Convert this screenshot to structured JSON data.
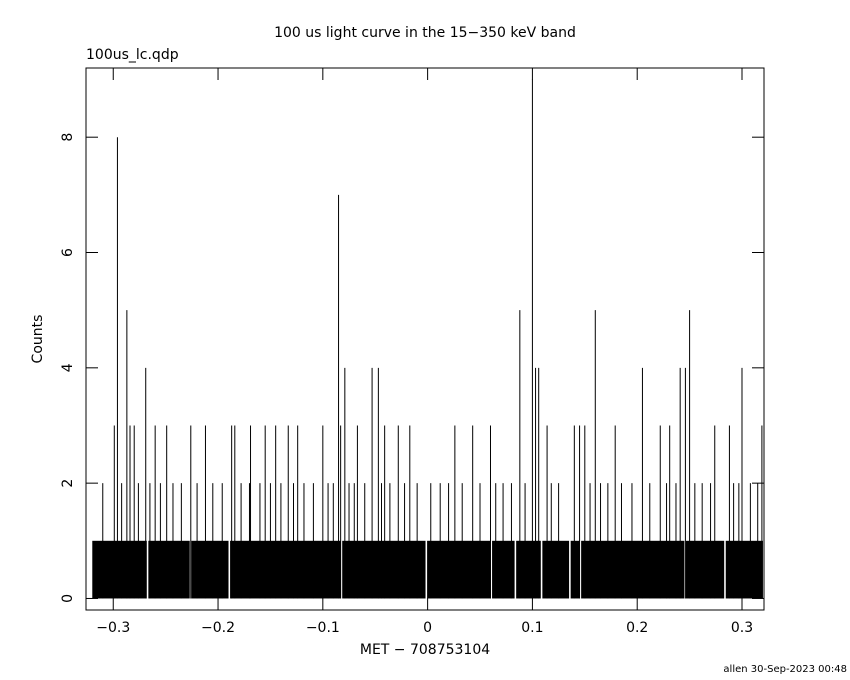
{
  "chart_data": {
    "type": "lightcurve",
    "title": "100 us light curve in the 15−350 keV band",
    "subtitle": "100us_lc.qdp",
    "xlabel": "MET − 708753104",
    "ylabel": "Counts",
    "footer": "allen 30-Sep-2023 00:48",
    "color": "#000000",
    "xlim": [
      -0.326,
      0.321
    ],
    "ylim": [
      -0.2,
      9.2
    ],
    "xticks": [
      {
        "value": -0.3,
        "label": "−0.3"
      },
      {
        "value": -0.2,
        "label": "−0.2"
      },
      {
        "value": -0.1,
        "label": "−0.1"
      },
      0,
      0.1,
      0.2,
      0.3
    ],
    "yticks": [
      0,
      2,
      4,
      6,
      8
    ],
    "histogram": {
      "bins": [
        -0.32,
        -0.268,
        -0.2665,
        -0.227,
        -0.2255,
        -0.19,
        -0.1885,
        -0.083,
        -0.0815,
        -0.002,
        -0.0005,
        0.06,
        0.0615,
        0.083,
        0.0845,
        0.108,
        0.1095,
        0.135,
        0.1365,
        0.145,
        0.1465,
        0.245,
        0.2465,
        0.283,
        0.2845,
        0.32
      ],
      "counts": [
        1,
        0,
        1,
        0,
        1,
        0,
        1,
        0,
        1,
        0,
        1,
        0,
        1,
        0,
        1,
        0,
        1,
        0,
        1,
        0,
        1,
        0,
        1,
        0,
        1
      ]
    },
    "spikes": {
      "x": [
        -0.296,
        -0.287,
        -0.269,
        -0.085,
        -0.079,
        -0.053,
        -0.047,
        0.1,
        0.088,
        0.103,
        0.106,
        0.16,
        0.205,
        0.241,
        0.25,
        0.246,
        0.3,
        -0.299,
        -0.284,
        -0.28,
        -0.26,
        -0.249,
        -0.226,
        -0.212,
        -0.187,
        -0.184,
        -0.169,
        -0.155,
        -0.145,
        -0.133,
        -0.124,
        -0.1,
        -0.083,
        -0.067,
        -0.041,
        -0.028,
        -0.017,
        0.026,
        0.043,
        0.06,
        0.114,
        0.14,
        0.145,
        0.15,
        0.179,
        0.222,
        0.231,
        0.274,
        0.288,
        0.319,
        -0.31,
        -0.292,
        -0.276,
        -0.265,
        -0.255,
        -0.243,
        -0.235,
        -0.22,
        -0.205,
        -0.196,
        -0.178,
        -0.17,
        -0.16,
        -0.15,
        -0.14,
        -0.128,
        -0.118,
        -0.109,
        -0.095,
        -0.09,
        -0.075,
        -0.07,
        -0.06,
        -0.044,
        -0.036,
        -0.022,
        -0.01,
        0.003,
        0.012,
        0.02,
        0.033,
        0.05,
        0.065,
        0.072,
        0.08,
        0.093,
        0.118,
        0.125,
        0.155,
        0.165,
        0.172,
        0.185,
        0.195,
        0.212,
        0.228,
        0.237,
        0.255,
        0.262,
        0.27,
        0.292,
        0.297,
        0.308,
        0.315
      ],
      "values": [
        8,
        5,
        4,
        7,
        4,
        4,
        4,
        9,
        5,
        4,
        4,
        5,
        4,
        4,
        5,
        4,
        4,
        3,
        3,
        3,
        3,
        3,
        3,
        3,
        3,
        3,
        3,
        3,
        3,
        3,
        3,
        3,
        3,
        3,
        3,
        3,
        3,
        3,
        3,
        3,
        3,
        3,
        3,
        3,
        3,
        3,
        3,
        3,
        3,
        3,
        2,
        2,
        2,
        2,
        2,
        2,
        2,
        2,
        2,
        2,
        2,
        2,
        2,
        2,
        2,
        2,
        2,
        2,
        2,
        2,
        2,
        2,
        2,
        2,
        2,
        2,
        2,
        2,
        2,
        2,
        2,
        2,
        2,
        2,
        2,
        2,
        2,
        2,
        2,
        2,
        2,
        2,
        2,
        2,
        2,
        2,
        2,
        2,
        2,
        2,
        2,
        2,
        2
      ]
    }
  }
}
